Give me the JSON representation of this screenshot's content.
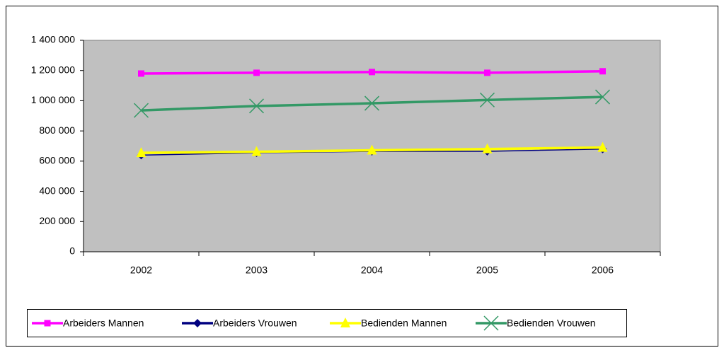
{
  "chart_data": {
    "type": "line",
    "categories": [
      "2002",
      "2003",
      "2004",
      "2005",
      "2006"
    ],
    "series": [
      {
        "name": "Arbeiders Mannen",
        "color": "#ff00ff",
        "marker": "square",
        "values": [
          1180000,
          1185000,
          1190000,
          1185000,
          1195000
        ]
      },
      {
        "name": "Arbeiders Vrouwen",
        "color": "#000080",
        "marker": "diamond",
        "values": [
          640000,
          655000,
          665000,
          665000,
          680000
        ]
      },
      {
        "name": "Bedienden Mannen",
        "color": "#ffff00",
        "marker": "triangle",
        "values": [
          655000,
          662000,
          672000,
          680000,
          690000
        ]
      },
      {
        "name": "Bedienden Vrouwen",
        "color": "#339966",
        "marker": "x",
        "values": [
          936000,
          965000,
          983000,
          1005000,
          1025000
        ]
      }
    ],
    "ylim": [
      0,
      1400000
    ],
    "yticks": [
      0,
      {
        "value": 200000,
        "label": "200 000"
      },
      {
        "value": 400000,
        "label": "400 000"
      },
      {
        "value": 600000,
        "label": "600 000"
      },
      {
        "value": 800000,
        "label": "800 000"
      },
      {
        "value": 1000000,
        "label": "1 000 000"
      },
      {
        "value": 1200000,
        "label": "1 200 000"
      },
      {
        "value": 1400000,
        "label": "1 400 000"
      }
    ],
    "grid": false,
    "plot_background": "#c0c0c0",
    "legend": "bottom"
  }
}
